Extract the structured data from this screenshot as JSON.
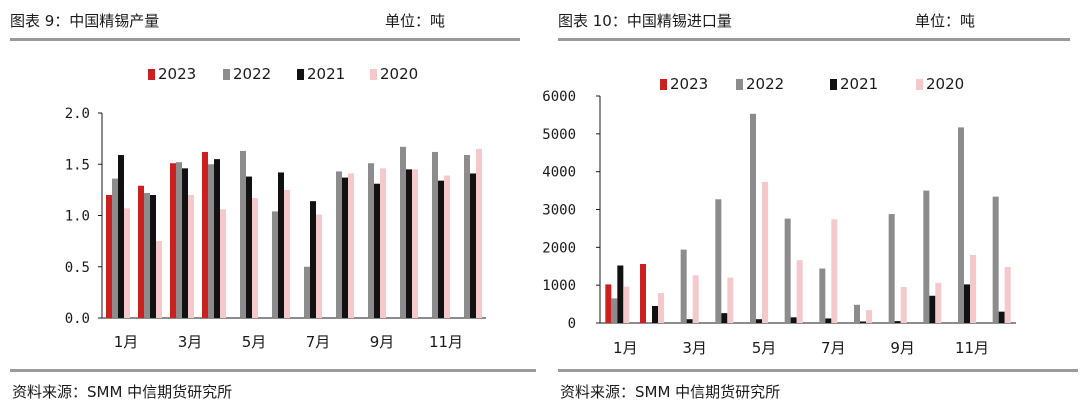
{
  "chart_data": [
    {
      "type": "bar",
      "title": "图表 9：中国精锡产量",
      "unit": "单位：吨",
      "source": "资料来源：SMM 中信期货研究所",
      "categories": [
        "1月",
        "2月",
        "3月",
        "4月",
        "5月",
        "6月",
        "7月",
        "8月",
        "9月",
        "10月",
        "11月",
        "12月"
      ],
      "tick_labels": [
        "1月",
        "3月",
        "5月",
        "7月",
        "9月",
        "11月"
      ],
      "y_ticks": [
        "0.0",
        "0.5",
        "1.0",
        "1.5",
        "2.0"
      ],
      "ylim": [
        0,
        2.0
      ],
      "series": [
        {
          "name": "2023",
          "color": "#cc1f1f",
          "values": [
            1.2,
            1.29,
            1.51,
            1.62,
            null,
            null,
            null,
            null,
            null,
            null,
            null,
            null
          ]
        },
        {
          "name": "2022",
          "color": "#8c8c8c",
          "values": [
            1.36,
            1.22,
            1.52,
            1.5,
            1.63,
            1.04,
            0.5,
            1.43,
            1.51,
            1.67,
            1.62,
            1.59
          ]
        },
        {
          "name": "2021",
          "color": "#111111",
          "values": [
            1.59,
            1.2,
            1.46,
            1.55,
            1.38,
            1.42,
            1.14,
            1.37,
            1.31,
            1.45,
            1.34,
            1.41
          ]
        },
        {
          "name": "2020",
          "color": "#f5c8cc",
          "values": [
            1.07,
            0.75,
            1.2,
            1.06,
            1.17,
            1.25,
            1.01,
            1.41,
            1.46,
            1.45,
            1.39,
            1.65
          ]
        }
      ]
    },
    {
      "type": "bar",
      "title": "图表 10：中国精锡进口量",
      "unit": "单位：吨",
      "source": "资料来源：SMM 中信期货研究所",
      "categories": [
        "1月",
        "2月",
        "3月",
        "4月",
        "5月",
        "6月",
        "7月",
        "8月",
        "9月",
        "10月",
        "11月",
        "12月"
      ],
      "tick_labels": [
        "1月",
        "3月",
        "5月",
        "7月",
        "9月",
        "11月"
      ],
      "y_ticks": [
        "0",
        "1000",
        "2000",
        "3000",
        "4000",
        "5000",
        "6000"
      ],
      "ylim": [
        0,
        6000
      ],
      "series": [
        {
          "name": "2023",
          "color": "#cc1f1f",
          "values": [
            1020,
            1560,
            null,
            null,
            null,
            null,
            null,
            null,
            null,
            null,
            null,
            null
          ]
        },
        {
          "name": "2022",
          "color": "#8c8c8c",
          "values": [
            650,
            0,
            1940,
            3270,
            5530,
            2760,
            1440,
            480,
            2880,
            3500,
            5170,
            3340
          ]
        },
        {
          "name": "2021",
          "color": "#111111",
          "values": [
            1520,
            450,
            100,
            260,
            100,
            150,
            120,
            40,
            50,
            720,
            1020,
            300
          ]
        },
        {
          "name": "2020",
          "color": "#f5c8cc",
          "values": [
            960,
            790,
            1260,
            1200,
            3730,
            1660,
            2740,
            340,
            950,
            1060,
            1800,
            1480
          ]
        }
      ]
    }
  ]
}
